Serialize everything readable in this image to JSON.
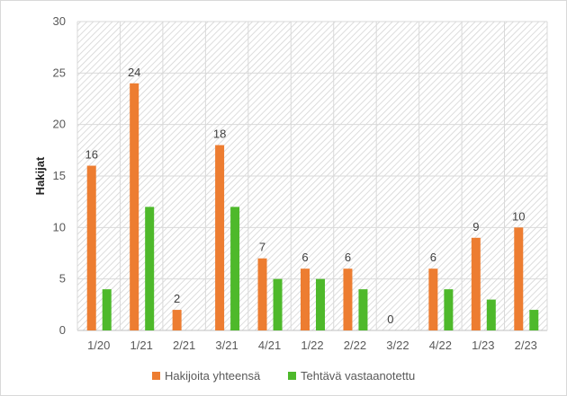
{
  "chart_data": {
    "type": "bar",
    "categories": [
      "1/20",
      "1/21",
      "2/21",
      "3/21",
      "4/21",
      "1/22",
      "2/22",
      "3/22",
      "4/22",
      "1/23",
      "2/23"
    ],
    "series": [
      {
        "name": "Hakijoita yhteensä",
        "values": [
          16,
          24,
          2,
          18,
          7,
          6,
          6,
          0,
          6,
          9,
          10
        ],
        "color": "#ed7d31",
        "data_labels": true
      },
      {
        "name": "Tehtävä vastaanotettu",
        "values": [
          4,
          12,
          0,
          12,
          5,
          5,
          4,
          0,
          4,
          3,
          2
        ],
        "color": "#4eb92b",
        "data_labels": false
      }
    ],
    "title": "",
    "xlabel": "",
    "ylabel": "Hakijat",
    "ylim": [
      0,
      30
    ],
    "yticks": [
      0,
      5,
      10,
      15,
      20,
      25,
      30
    ],
    "grid": true,
    "plot_background": "diagonal-hatch",
    "legend_position": "bottom"
  }
}
